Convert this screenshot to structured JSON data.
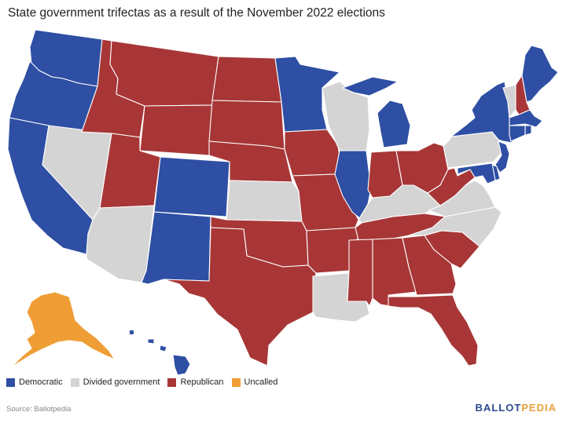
{
  "title": "State government trifectas as a result of the November 2022 elections",
  "colors": {
    "Democratic": "#2e4fa3",
    "Divided government": "#d4d4d4",
    "Republican": "#a83636",
    "Uncalled": "#ef9e36"
  },
  "legend": [
    {
      "label": "Democratic",
      "color": "#2e4fa3"
    },
    {
      "label": "Divided government",
      "color": "#d4d4d4"
    },
    {
      "label": "Republican",
      "color": "#a83636"
    },
    {
      "label": "Uncalled",
      "color": "#ef9e36"
    }
  ],
  "source": "Source: Ballotpedia",
  "brand": {
    "part1": "BALLOT",
    "part2": "PEDIA"
  },
  "states": {
    "WA": "Democratic",
    "OR": "Democratic",
    "CA": "Democratic",
    "NV": "Divided government",
    "ID": "Republican",
    "MT": "Republican",
    "WY": "Republican",
    "UT": "Republican",
    "AZ": "Divided government",
    "CO": "Democratic",
    "NM": "Democratic",
    "ND": "Republican",
    "SD": "Republican",
    "NE": "Republican",
    "KS": "Divided government",
    "OK": "Republican",
    "TX": "Republican",
    "MN": "Democratic",
    "IA": "Republican",
    "MO": "Republican",
    "AR": "Republican",
    "LA": "Divided government",
    "WI": "Divided government",
    "IL": "Democratic",
    "MI": "Democratic",
    "IN": "Republican",
    "OH": "Republican",
    "KY": "Divided government",
    "TN": "Republican",
    "MS": "Republican",
    "AL": "Republican",
    "GA": "Republican",
    "FL": "Republican",
    "SC": "Republican",
    "NC": "Divided government",
    "VA": "Divided government",
    "WV": "Republican",
    "PA": "Divided government",
    "NY": "Democratic",
    "VT": "Divided government",
    "NH": "Republican",
    "ME": "Democratic",
    "MA": "Democratic",
    "RI": "Democratic",
    "CT": "Democratic",
    "NJ": "Democratic",
    "DE": "Democratic",
    "MD": "Democratic",
    "AK": "Uncalled",
    "HI": "Democratic"
  }
}
